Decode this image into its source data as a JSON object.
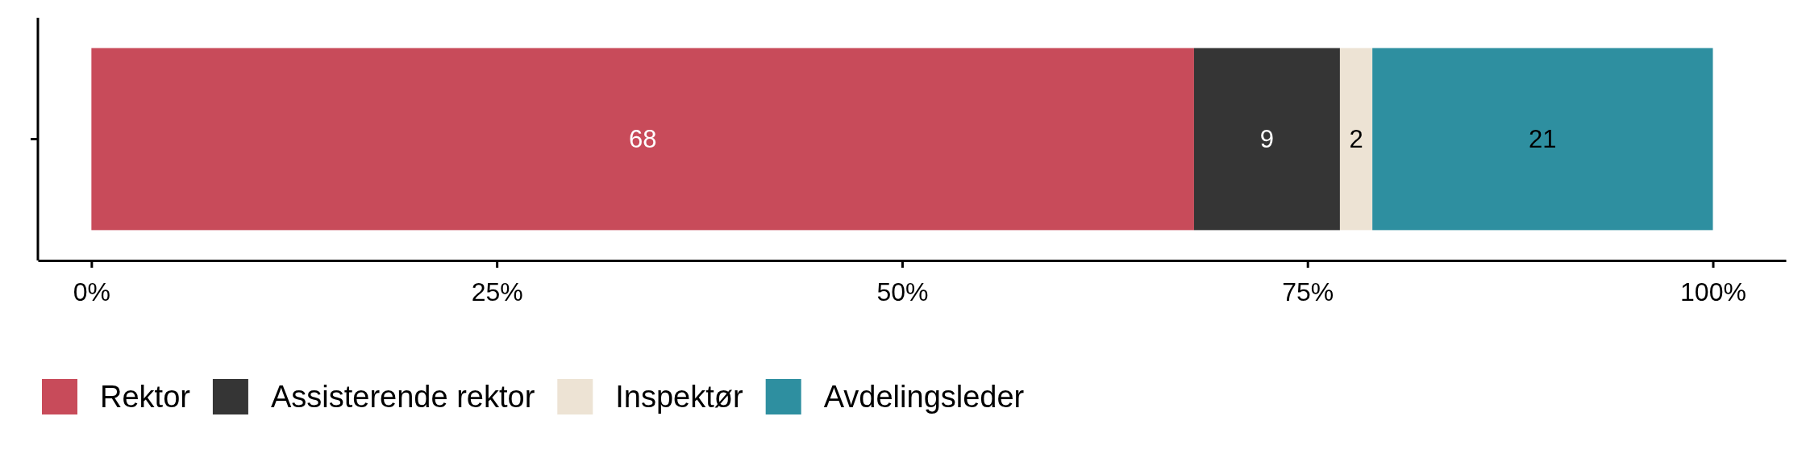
{
  "chart_data": {
    "type": "bar",
    "orientation": "horizontal",
    "stacked": true,
    "categories": [
      null
    ],
    "series": [
      {
        "name": "Rektor",
        "color": "#c84b5a",
        "values": [
          68
        ]
      },
      {
        "name": "Assisterende rektor",
        "color": "#353535",
        "values": [
          9
        ]
      },
      {
        "name": "Inspektør",
        "color": "#ede3d4",
        "values": [
          2
        ]
      },
      {
        "name": "Avdelingsleder",
        "color": "#2e8fa0",
        "values": [
          21
        ]
      }
    ],
    "xlim": [
      -3.3,
      104.5
    ],
    "xticks": [
      {
        "value": 0,
        "label": "0%"
      },
      {
        "value": 25,
        "label": "25%"
      },
      {
        "value": 50,
        "label": "50%"
      },
      {
        "value": 75,
        "label": "75%"
      },
      {
        "value": 100,
        "label": "100%"
      }
    ],
    "data_labels": true,
    "legend": "bottom",
    "grid": false
  }
}
